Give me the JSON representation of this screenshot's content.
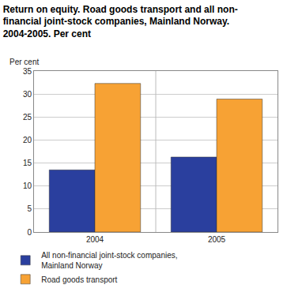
{
  "chart_data": {
    "type": "bar",
    "title": "Return on equity. Road goods transport and all non-\nfinancial joint-stock companies, Mainland Norway.\n2004-2005. Per cent",
    "ylabel": "Per cent",
    "categories": [
      "2004",
      "2005"
    ],
    "series": [
      {
        "name": "All non-financial joint-stock companies,\nMainland Norway",
        "color": "#2a3f9e",
        "values": [
          13.5,
          16.3
        ]
      },
      {
        "name": "Road goods transport",
        "color": "#f7a234",
        "values": [
          32.3,
          28.9
        ]
      }
    ],
    "ylim": [
      0,
      35
    ],
    "yticks": [
      0,
      5,
      10,
      15,
      20,
      25,
      30,
      35
    ],
    "grid": true,
    "legend": "bottom"
  }
}
